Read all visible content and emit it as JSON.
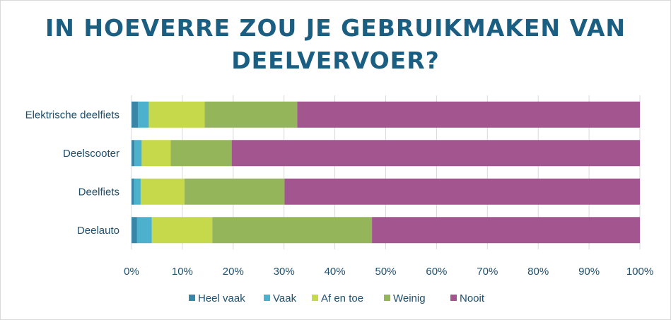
{
  "chart_data": {
    "type": "bar",
    "orientation": "horizontal",
    "stacked": "percent",
    "title": "IN HOEVERRE ZOU JE GEBRUIKMAKEN VAN DEELVERVOER?",
    "categories": [
      "Elektrische deelfiets",
      "Deelscooter",
      "Deelfiets",
      "Deelauto"
    ],
    "series": [
      {
        "name": "Heel vaak",
        "color": "#3a86a6",
        "values": [
          1.3,
          0.6,
          0.5,
          1.1
        ]
      },
      {
        "name": "Vaak",
        "color": "#4bb1cc",
        "values": [
          2.1,
          1.4,
          1.3,
          2.9
        ]
      },
      {
        "name": "Af en toe",
        "color": "#c5d94a",
        "values": [
          11.0,
          5.7,
          8.6,
          11.9
        ]
      },
      {
        "name": "Weinig",
        "color": "#94b55a",
        "values": [
          18.2,
          12.0,
          19.7,
          31.4
        ]
      },
      {
        "name": "Nooit",
        "color": "#a2558f",
        "values": [
          67.4,
          80.3,
          69.9,
          52.7
        ]
      }
    ],
    "xlim": [
      0,
      100
    ],
    "xticks": [
      "0%",
      "10%",
      "20%",
      "30%",
      "40%",
      "50%",
      "60%",
      "70%",
      "80%",
      "90%",
      "100%"
    ],
    "grid": true,
    "legend": "bottom"
  }
}
